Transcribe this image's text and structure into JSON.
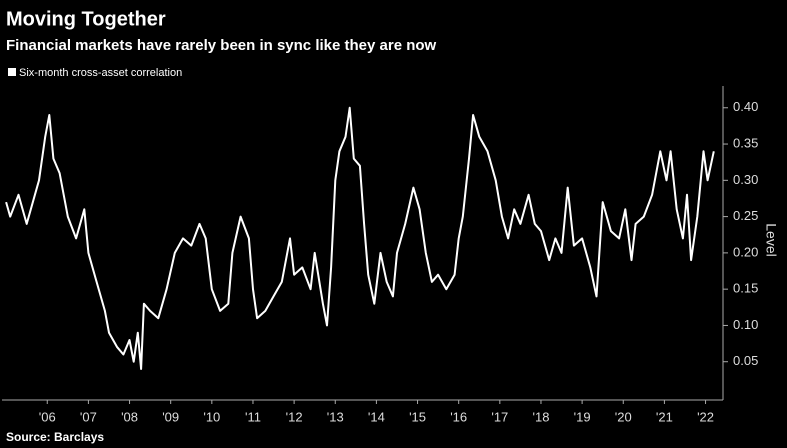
{
  "chart_data": {
    "type": "line",
    "title": "Moving Together",
    "subtitle": "Financial markets have rarely been in sync like they are now",
    "y_label": "Level",
    "source": "Source: Barclays",
    "x": [
      2005.5,
      2005.6,
      2005.8,
      2006.0,
      2006.2,
      2006.3,
      2006.45,
      2006.55,
      2006.65,
      2006.8,
      2006.9,
      2007.0,
      2007.2,
      2007.4,
      2007.5,
      2007.7,
      2007.9,
      2008.0,
      2008.2,
      2008.35,
      2008.5,
      2008.6,
      2008.7,
      2008.78,
      2008.85,
      2009.0,
      2009.2,
      2009.4,
      2009.6,
      2009.8,
      2010.0,
      2010.2,
      2010.35,
      2010.5,
      2010.7,
      2010.9,
      2011.0,
      2011.2,
      2011.4,
      2011.5,
      2011.6,
      2011.8,
      2012.0,
      2012.2,
      2012.4,
      2012.5,
      2012.7,
      2012.9,
      2013.0,
      2013.2,
      2013.3,
      2013.4,
      2013.5,
      2013.6,
      2013.75,
      2013.85,
      2013.95,
      2014.1,
      2014.2,
      2014.3,
      2014.45,
      2014.6,
      2014.75,
      2014.9,
      2015.0,
      2015.2,
      2015.4,
      2015.55,
      2015.7,
      2015.85,
      2016.0,
      2016.2,
      2016.4,
      2016.5,
      2016.6,
      2016.75,
      2016.85,
      2017.0,
      2017.2,
      2017.4,
      2017.55,
      2017.7,
      2017.85,
      2018.0,
      2018.2,
      2018.35,
      2018.5,
      2018.7,
      2018.85,
      2019.0,
      2019.15,
      2019.3,
      2019.5,
      2019.7,
      2019.85,
      2020.0,
      2020.2,
      2020.4,
      2020.55,
      2020.7,
      2020.8,
      2021.0,
      2021.2,
      2021.4,
      2021.55,
      2021.65,
      2021.8,
      2021.95,
      2022.05,
      2022.15,
      2022.3,
      2022.45,
      2022.55,
      2022.7
    ],
    "series": [
      {
        "name": "Six-month cross-asset correlation",
        "color": "#ffffff",
        "values": [
          0.27,
          0.25,
          0.28,
          0.24,
          0.28,
          0.3,
          0.36,
          0.39,
          0.33,
          0.31,
          0.28,
          0.25,
          0.22,
          0.26,
          0.2,
          0.16,
          0.12,
          0.09,
          0.07,
          0.06,
          0.08,
          0.05,
          0.09,
          0.04,
          0.13,
          0.12,
          0.11,
          0.15,
          0.2,
          0.22,
          0.21,
          0.24,
          0.22,
          0.15,
          0.12,
          0.13,
          0.2,
          0.25,
          0.22,
          0.15,
          0.11,
          0.12,
          0.14,
          0.16,
          0.22,
          0.17,
          0.18,
          0.15,
          0.2,
          0.13,
          0.1,
          0.18,
          0.3,
          0.34,
          0.36,
          0.4,
          0.33,
          0.32,
          0.24,
          0.17,
          0.13,
          0.2,
          0.16,
          0.14,
          0.2,
          0.24,
          0.29,
          0.26,
          0.2,
          0.16,
          0.17,
          0.15,
          0.17,
          0.22,
          0.25,
          0.33,
          0.39,
          0.36,
          0.34,
          0.3,
          0.25,
          0.22,
          0.26,
          0.24,
          0.28,
          0.24,
          0.23,
          0.19,
          0.22,
          0.2,
          0.29,
          0.21,
          0.22,
          0.18,
          0.14,
          0.27,
          0.23,
          0.22,
          0.26,
          0.19,
          0.24,
          0.25,
          0.28,
          0.34,
          0.3,
          0.34,
          0.26,
          0.22,
          0.28,
          0.19,
          0.25,
          0.34,
          0.3,
          0.34
        ]
      }
    ],
    "xlim": [
      2005.4,
      2022.9
    ],
    "xticks": [
      {
        "value": 2006.5,
        "label": "'06"
      },
      {
        "value": 2007.5,
        "label": "'07"
      },
      {
        "value": 2008.5,
        "label": "'08"
      },
      {
        "value": 2009.5,
        "label": "'09"
      },
      {
        "value": 2010.5,
        "label": "'10"
      },
      {
        "value": 2011.5,
        "label": "'11"
      },
      {
        "value": 2012.5,
        "label": "'12"
      },
      {
        "value": 2013.5,
        "label": "'13"
      },
      {
        "value": 2014.5,
        "label": "'14"
      },
      {
        "value": 2015.5,
        "label": "'15"
      },
      {
        "value": 2016.5,
        "label": "'16"
      },
      {
        "value": 2017.5,
        "label": "'17"
      },
      {
        "value": 2018.5,
        "label": "'18"
      },
      {
        "value": 2019.5,
        "label": "'19"
      },
      {
        "value": 2020.5,
        "label": "'20"
      },
      {
        "value": 2021.5,
        "label": "'21"
      },
      {
        "value": 2022.5,
        "label": "'22"
      }
    ],
    "ylim": [
      0,
      0.43
    ],
    "yticks": [
      0.05,
      {
        "value": 0.1,
        "label": "0.10"
      },
      0.15,
      {
        "value": 0.2,
        "label": "0.20"
      },
      0.25,
      {
        "value": 0.3,
        "label": "0.30"
      },
      0.35,
      {
        "value": 0.4,
        "label": "0.40"
      }
    ],
    "y_axis_side": "right",
    "grid": false
  }
}
